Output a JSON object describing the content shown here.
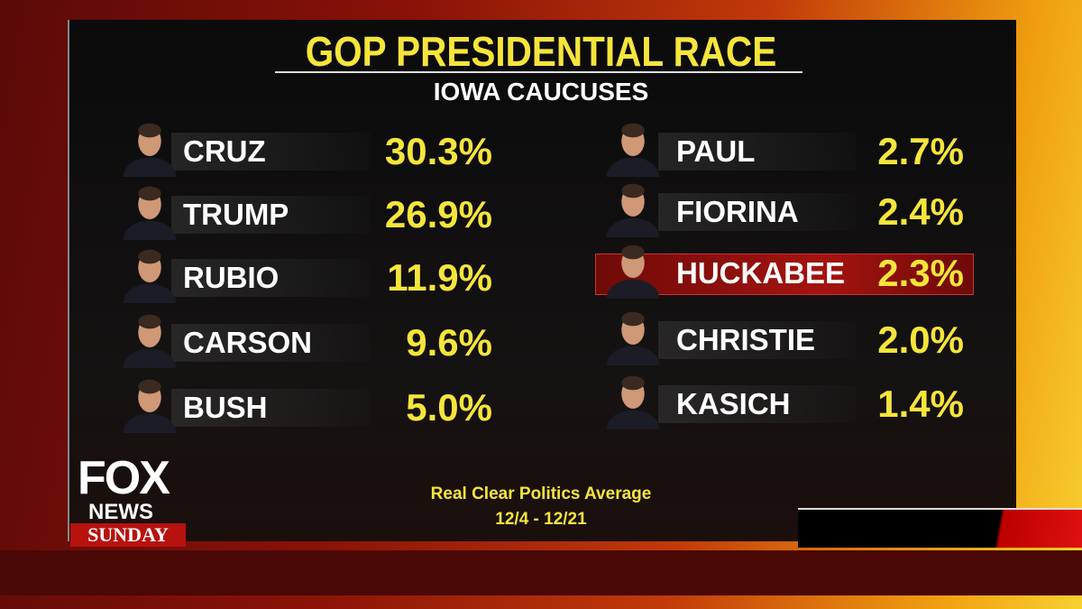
{
  "header": {
    "title": "GOP PRESIDENTIAL RACE",
    "subtitle": "IOWA CAUCUSES"
  },
  "candidates": {
    "left": [
      {
        "name": "CRUZ",
        "value": "30.3%"
      },
      {
        "name": "TRUMP",
        "value": "26.9%"
      },
      {
        "name": "RUBIO",
        "value": "11.9%"
      },
      {
        "name": "CARSON",
        "value": "9.6%"
      },
      {
        "name": "BUSH",
        "value": "5.0%"
      }
    ],
    "right": [
      {
        "name": "PAUL",
        "value": "2.7%"
      },
      {
        "name": "FIORINA",
        "value": "2.4%"
      },
      {
        "name": "HUCKABEE",
        "value": "2.3%"
      },
      {
        "name": "CHRISTIE",
        "value": "2.0%"
      },
      {
        "name": "KASICH",
        "value": "1.4%"
      }
    ]
  },
  "source": {
    "name": "Real Clear Politics Average",
    "dates": "12/4 - 12/21"
  },
  "logo": {
    "line1": "FOX",
    "line2": "NEWS",
    "line3": "SUNDAY"
  }
}
